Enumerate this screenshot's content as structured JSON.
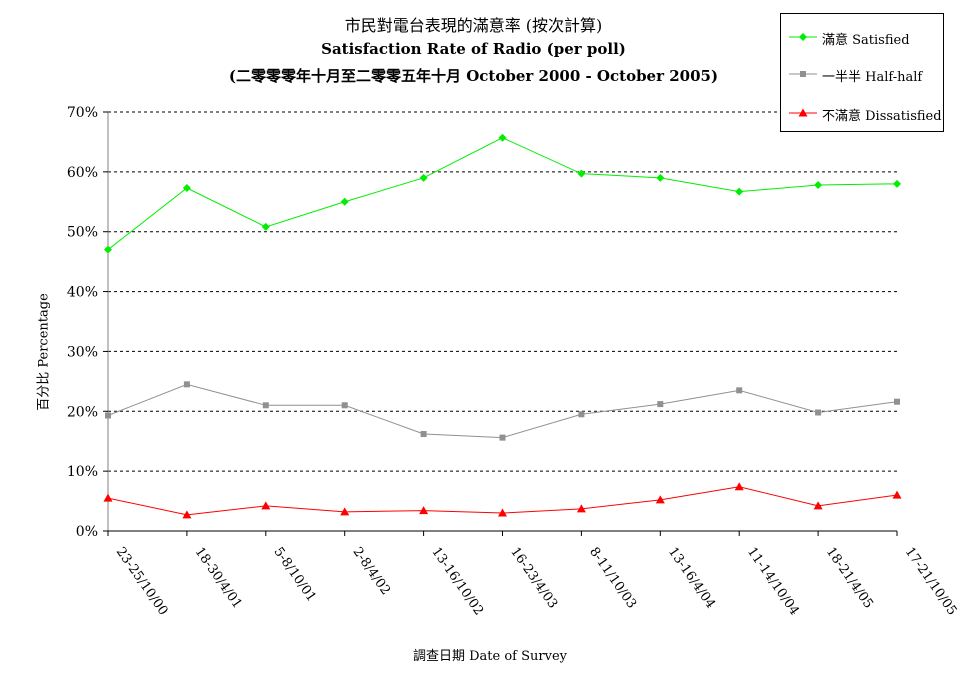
{
  "chart_data": {
    "type": "line",
    "title_zh": "市民對電台表現的滿意率 (按次計算)",
    "title_en": "Satisfaction Rate of Radio (per poll)",
    "subtitle": "(二零零零年十月至二零零五年十月 October 2000 - October 2005)",
    "xlabel": "調查日期 Date of Survey",
    "ylabel": "百分比 Percentage",
    "ylim": [
      0,
      70
    ],
    "yticks": [
      "0%",
      "10%",
      "20%",
      "30%",
      "40%",
      "50%",
      "60%",
      "70%"
    ],
    "grid": true,
    "legend_position": "top-right",
    "categories": [
      "23-25/10/00",
      "18-30/4/01",
      "5-8/10/01",
      "2-8/4/02",
      "13-16/10/02",
      "16-23/4/03",
      "8-11/10/03",
      "13-16/4/04",
      "11-14/10/04",
      "18-21/4/05",
      "17-21/10/05"
    ],
    "series": [
      {
        "name": "滿意 Satisfied",
        "color": "#00ee00",
        "marker": "diamond",
        "values": [
          47.0,
          57.3,
          50.8,
          55.0,
          59.0,
          65.7,
          59.7,
          59.0,
          56.7,
          57.8,
          58.0
        ]
      },
      {
        "name": "一半半 Half-half",
        "color": "#909090",
        "marker": "square",
        "values": [
          19.3,
          24.5,
          21.0,
          21.0,
          16.2,
          15.6,
          19.5,
          21.2,
          23.5,
          19.8,
          21.6
        ]
      },
      {
        "name": "不滿意 Dissatisfied",
        "color": "#ff0000",
        "marker": "triangle",
        "values": [
          5.5,
          2.7,
          4.2,
          3.2,
          3.4,
          3.0,
          3.7,
          5.2,
          7.4,
          4.2,
          6.0
        ]
      }
    ]
  }
}
